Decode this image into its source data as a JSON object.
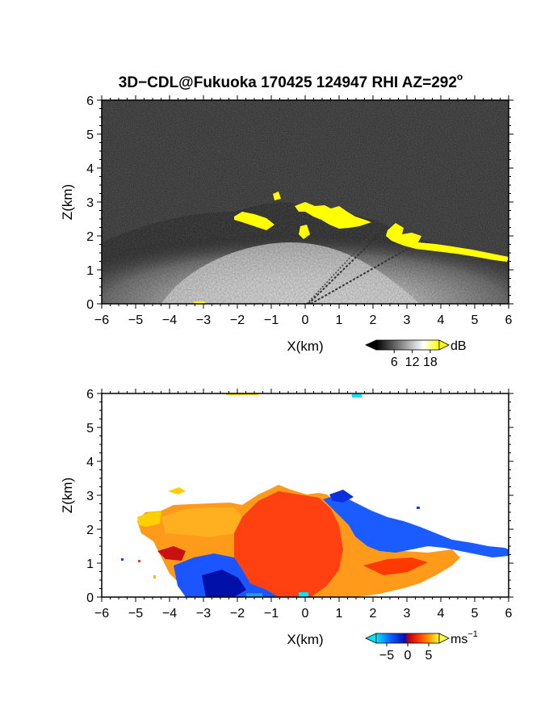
{
  "chart_data": [
    {
      "type": "heatmap",
      "title": "3D−CDL@Fukuoka 170425 124947 RHI AZ=292",
      "title_superscript": "o",
      "xlabel": "X(km)",
      "ylabel": "Z(km)",
      "xlim": [
        -6,
        6
      ],
      "ylim": [
        0,
        6
      ],
      "x_ticks": [
        "−6",
        "−5",
        "−4",
        "−3",
        "−2",
        "−1",
        "0",
        "1",
        "2",
        "3",
        "4",
        "5",
        "6"
      ],
      "y_ticks": [
        "0",
        "1",
        "2",
        "3",
        "4",
        "5",
        "6"
      ],
      "colorbar": {
        "unit": "dB",
        "ticks": [
          "6",
          "12",
          "18"
        ],
        "range": [
          0,
          21
        ],
        "colors": [
          "#000000",
          "#ffffff",
          "#ffff00"
        ]
      },
      "features": [
        {
          "name": "high-snr cloud echo",
          "points": [
            [
              -2.0,
              2.6
            ],
            [
              -1.0,
              2.5
            ],
            [
              -0.5,
              2.9
            ],
            [
              0.5,
              2.7
            ],
            [
              1.5,
              2.4
            ],
            [
              2.5,
              2.2
            ],
            [
              3.5,
              1.8
            ],
            [
              4.5,
              1.6
            ],
            [
              5.5,
              1.4
            ],
            [
              6.0,
              1.3
            ]
          ]
        }
      ]
    },
    {
      "type": "heatmap",
      "xlabel": "X(km)",
      "ylabel": "Z(km)",
      "xlim": [
        -6,
        6
      ],
      "ylim": [
        0,
        6
      ],
      "x_ticks": [
        "−6",
        "−5",
        "−4",
        "−3",
        "−2",
        "−1",
        "0",
        "1",
        "2",
        "3",
        "4",
        "5",
        "6"
      ],
      "y_ticks": [
        "0",
        "1",
        "2",
        "3",
        "4",
        "5",
        "6"
      ],
      "colorbar": {
        "unit": "ms",
        "unit_superscript": "−1",
        "ticks": [
          "−5",
          "0",
          "5"
        ],
        "range": [
          -7.5,
          7.5
        ],
        "colors": [
          "#00e5ff",
          "#0040ff",
          "#0000c0",
          "#c00000",
          "#ff3000",
          "#ffa000",
          "#ffff00"
        ]
      },
      "features": [
        {
          "name": "westward wind region (blue)",
          "x_range": [
            1.0,
            6.0
          ],
          "z_range": [
            1.2,
            2.6
          ]
        },
        {
          "name": "eastward wind region (red/orange)",
          "x_range": [
            -4.5,
            1.5
          ],
          "z_range": [
            0.5,
            3.2
          ]
        }
      ]
    }
  ],
  "colors": {
    "background": "#ffffff",
    "frame": "#000000",
    "noise": "#262626",
    "highlight": "#ffff00"
  }
}
